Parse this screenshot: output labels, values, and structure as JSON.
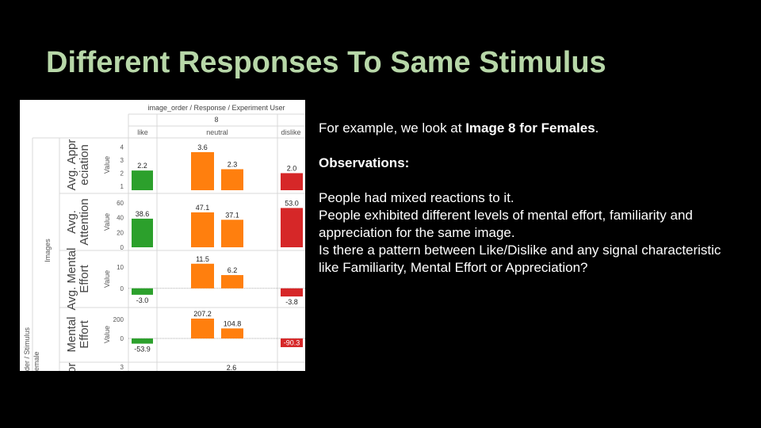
{
  "title": "Different Responses To Same Stimulus",
  "text": {
    "intro_prefix": "For example, we look at ",
    "intro_bold": "Image 8 for Females",
    "intro_suffix": ".",
    "observations_heading": "Observations:",
    "lines": [
      "People had mixed reactions to it.",
      "People exhibited different levels of mental effort, familiarity and appreciation for the same image.",
      "Is there a pattern between Like/Dislike and any signal characteristic like Familiarity, Mental Effort or Appreciation?"
    ]
  },
  "chart_data": {
    "type": "bar",
    "header_title": "image_order  /  Response  /  Experiment User",
    "image_label": "8",
    "categories": [
      "like",
      "neutral",
      "dislike"
    ],
    "left_labels": [
      "Images",
      "der  /  Stimulus",
      "emale"
    ],
    "value_label": "Value",
    "colors": {
      "like": "#2ca02c",
      "neutral": "#ff7f0e",
      "dislike": "#d62728"
    },
    "rows": [
      {
        "label": "Avg. Appr eciation",
        "ticks": [
          "4",
          "3",
          "2",
          "1"
        ],
        "ylim": [
          0.7,
          4.2
        ],
        "bars": [
          {
            "category": "like",
            "value": 2.2,
            "label": "2.2"
          },
          {
            "category": "neutral",
            "value": 3.6,
            "label": "3.6"
          },
          {
            "category": "neutral",
            "value": 2.3,
            "label": "2.3"
          },
          {
            "category": "dislike",
            "value": 2.0,
            "label": "2.0"
          }
        ]
      },
      {
        "label": "Avg. Attention",
        "ticks": [
          "60",
          "40",
          "20",
          "0"
        ],
        "ylim": [
          0,
          62
        ],
        "bars": [
          {
            "category": "like",
            "value": 38.6,
            "label": "38.6"
          },
          {
            "category": "neutral",
            "value": 47.1,
            "label": "47.1"
          },
          {
            "category": "neutral",
            "value": 37.1,
            "label": "37.1"
          },
          {
            "category": "dislike",
            "value": 53.0,
            "label": "53.0"
          }
        ]
      },
      {
        "label": "Avg. Mental Effort",
        "ticks": [
          "10",
          "0"
        ],
        "ylim": [
          -6,
          14
        ],
        "bars": [
          {
            "category": "like",
            "value": -3.0,
            "label": "-3.0"
          },
          {
            "category": "neutral",
            "value": 11.5,
            "label": "11.5"
          },
          {
            "category": "neutral",
            "value": 6.2,
            "label": "6.2"
          },
          {
            "category": "dislike",
            "value": -3.8,
            "label": "-3.8"
          }
        ]
      },
      {
        "label": "Mental Effort",
        "ticks": [
          "200",
          "0"
        ],
        "ylim": [
          -140,
          240
        ],
        "bars": [
          {
            "category": "like",
            "value": -53.9,
            "label": "-53.9"
          },
          {
            "category": "neutral",
            "value": 207.2,
            "label": "207.2"
          },
          {
            "category": "neutral",
            "value": 104.8,
            "label": "104.8"
          },
          {
            "category": "dislike",
            "value": -90.3,
            "label": "-90.3"
          }
        ]
      }
    ],
    "partial_row": {
      "label": "or",
      "tick": "3",
      "value_label": "2.6"
    }
  }
}
